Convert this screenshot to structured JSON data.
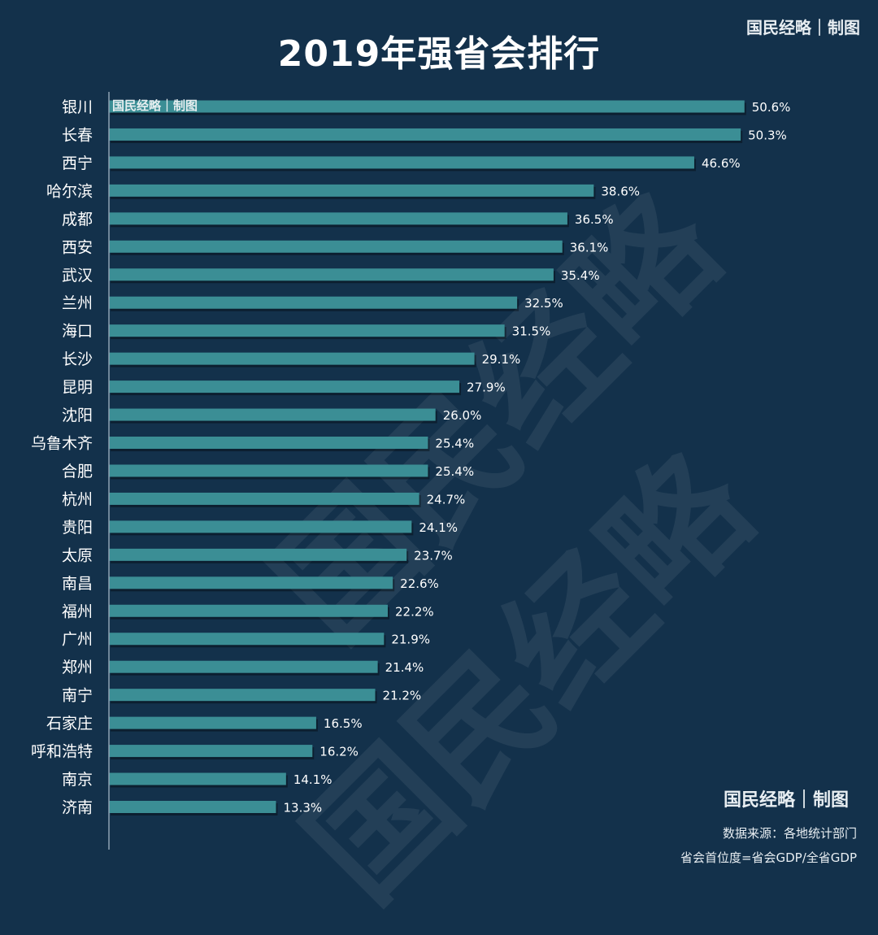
{
  "chart_data": {
    "type": "bar",
    "orientation": "horizontal",
    "title": "2019年强省会排行",
    "categories": [
      "银川",
      "长春",
      "西宁",
      "哈尔滨",
      "成都",
      "西安",
      "武汉",
      "兰州",
      "海口",
      "长沙",
      "昆明",
      "沈阳",
      "乌鲁木齐",
      "合肥",
      "杭州",
      "贵阳",
      "太原",
      "南昌",
      "福州",
      "广州",
      "郑州",
      "南宁",
      "石家庄",
      "呼和浩特",
      "南京",
      "济南"
    ],
    "values": [
      50.6,
      50.3,
      46.6,
      38.6,
      36.5,
      36.1,
      35.4,
      32.5,
      31.5,
      29.1,
      27.9,
      26.0,
      25.4,
      25.4,
      24.7,
      24.1,
      23.7,
      22.6,
      22.2,
      21.9,
      21.4,
      21.2,
      16.5,
      16.2,
      14.1,
      13.3
    ],
    "value_labels": [
      "50.6%",
      "50.3%",
      "46.6%",
      "38.6%",
      "36.5%",
      "36.1%",
      "35.4%",
      "32.5%",
      "31.5%",
      "29.1%",
      "27.9%",
      "26.0%",
      "25.4%",
      "25.4%",
      "24.7%",
      "24.1%",
      "23.7%",
      "22.6%",
      "22.2%",
      "21.9%",
      "21.4%",
      "21.2%",
      "16.5%",
      "16.2%",
      "14.1%",
      "13.3%"
    ],
    "unit": "%",
    "grid": false,
    "legend": "none",
    "bar_color": "#3b8e95",
    "background_color": "#13314b"
  },
  "branding": {
    "credit": "国民经略｜制图",
    "watermark": "国民经略"
  },
  "footer": {
    "source": "数据来源：各地统计部门",
    "formula": "省会首位度=省会GDP/全省GDP"
  }
}
